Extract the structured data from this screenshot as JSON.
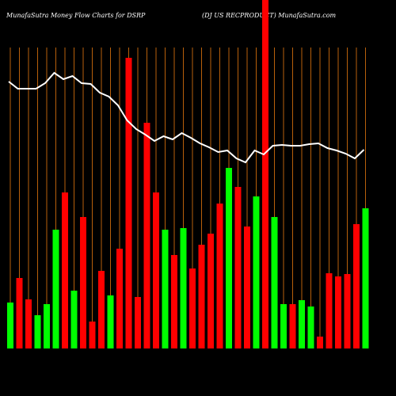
{
  "chart_data": {
    "type": "bar-line",
    "title": "MunafaSutra  Money Flow  Charts for DSRP",
    "subtitle": "(DJ US RECPRODUCT) MunafaSutra.com",
    "series": [
      {
        "type": "bar",
        "values": [
          58,
          89,
          62,
          42,
          56,
          150,
          197,
          73,
          166,
          34,
          98,
          67,
          126,
          367,
          65,
          285,
          197,
          150,
          118,
          152,
          101,
          131,
          145,
          183,
          228,
          204,
          154,
          192,
          440,
          166,
          56,
          56,
          61,
          53,
          15,
          95,
          91,
          94,
          157,
          177
        ],
        "colors": [
          "#00ff00",
          "#ff0000",
          "#ff0000",
          "#00ff00",
          "#00ff00",
          "#00ff00",
          "#ff0000",
          "#00ff00",
          "#ff0000",
          "#ff0000",
          "#ff0000",
          "#00ff00",
          "#ff0000",
          "#ff0000",
          "#ff0000",
          "#ff0000",
          "#ff0000",
          "#00ff00",
          "#ff0000",
          "#00ff00",
          "#ff0000",
          "#ff0000",
          "#ff0000",
          "#ff0000",
          "#00ff00",
          "#ff0000",
          "#ff0000",
          "#00ff00",
          "#ff0000",
          "#00ff00",
          "#00ff00",
          "#ff0000",
          "#00ff00",
          "#00ff00",
          "#ff0000",
          "#ff0000",
          "#ff0000",
          "#ff0000",
          "#ff0000",
          "#00ff00"
        ]
      },
      {
        "type": "line",
        "color": "#ffffff",
        "values": [
          337,
          328,
          328,
          328,
          335,
          348,
          340,
          344,
          335,
          334,
          323,
          318,
          307,
          288,
          277,
          270,
          262,
          268,
          264,
          272,
          266,
          259,
          254,
          248,
          250,
          240,
          235,
          250,
          245,
          256,
          257,
          256,
          256,
          258,
          259,
          253,
          250,
          246,
          240,
          251
        ]
      }
    ],
    "ylim": [
      0,
      440
    ],
    "grid_color": "#b8600b"
  }
}
